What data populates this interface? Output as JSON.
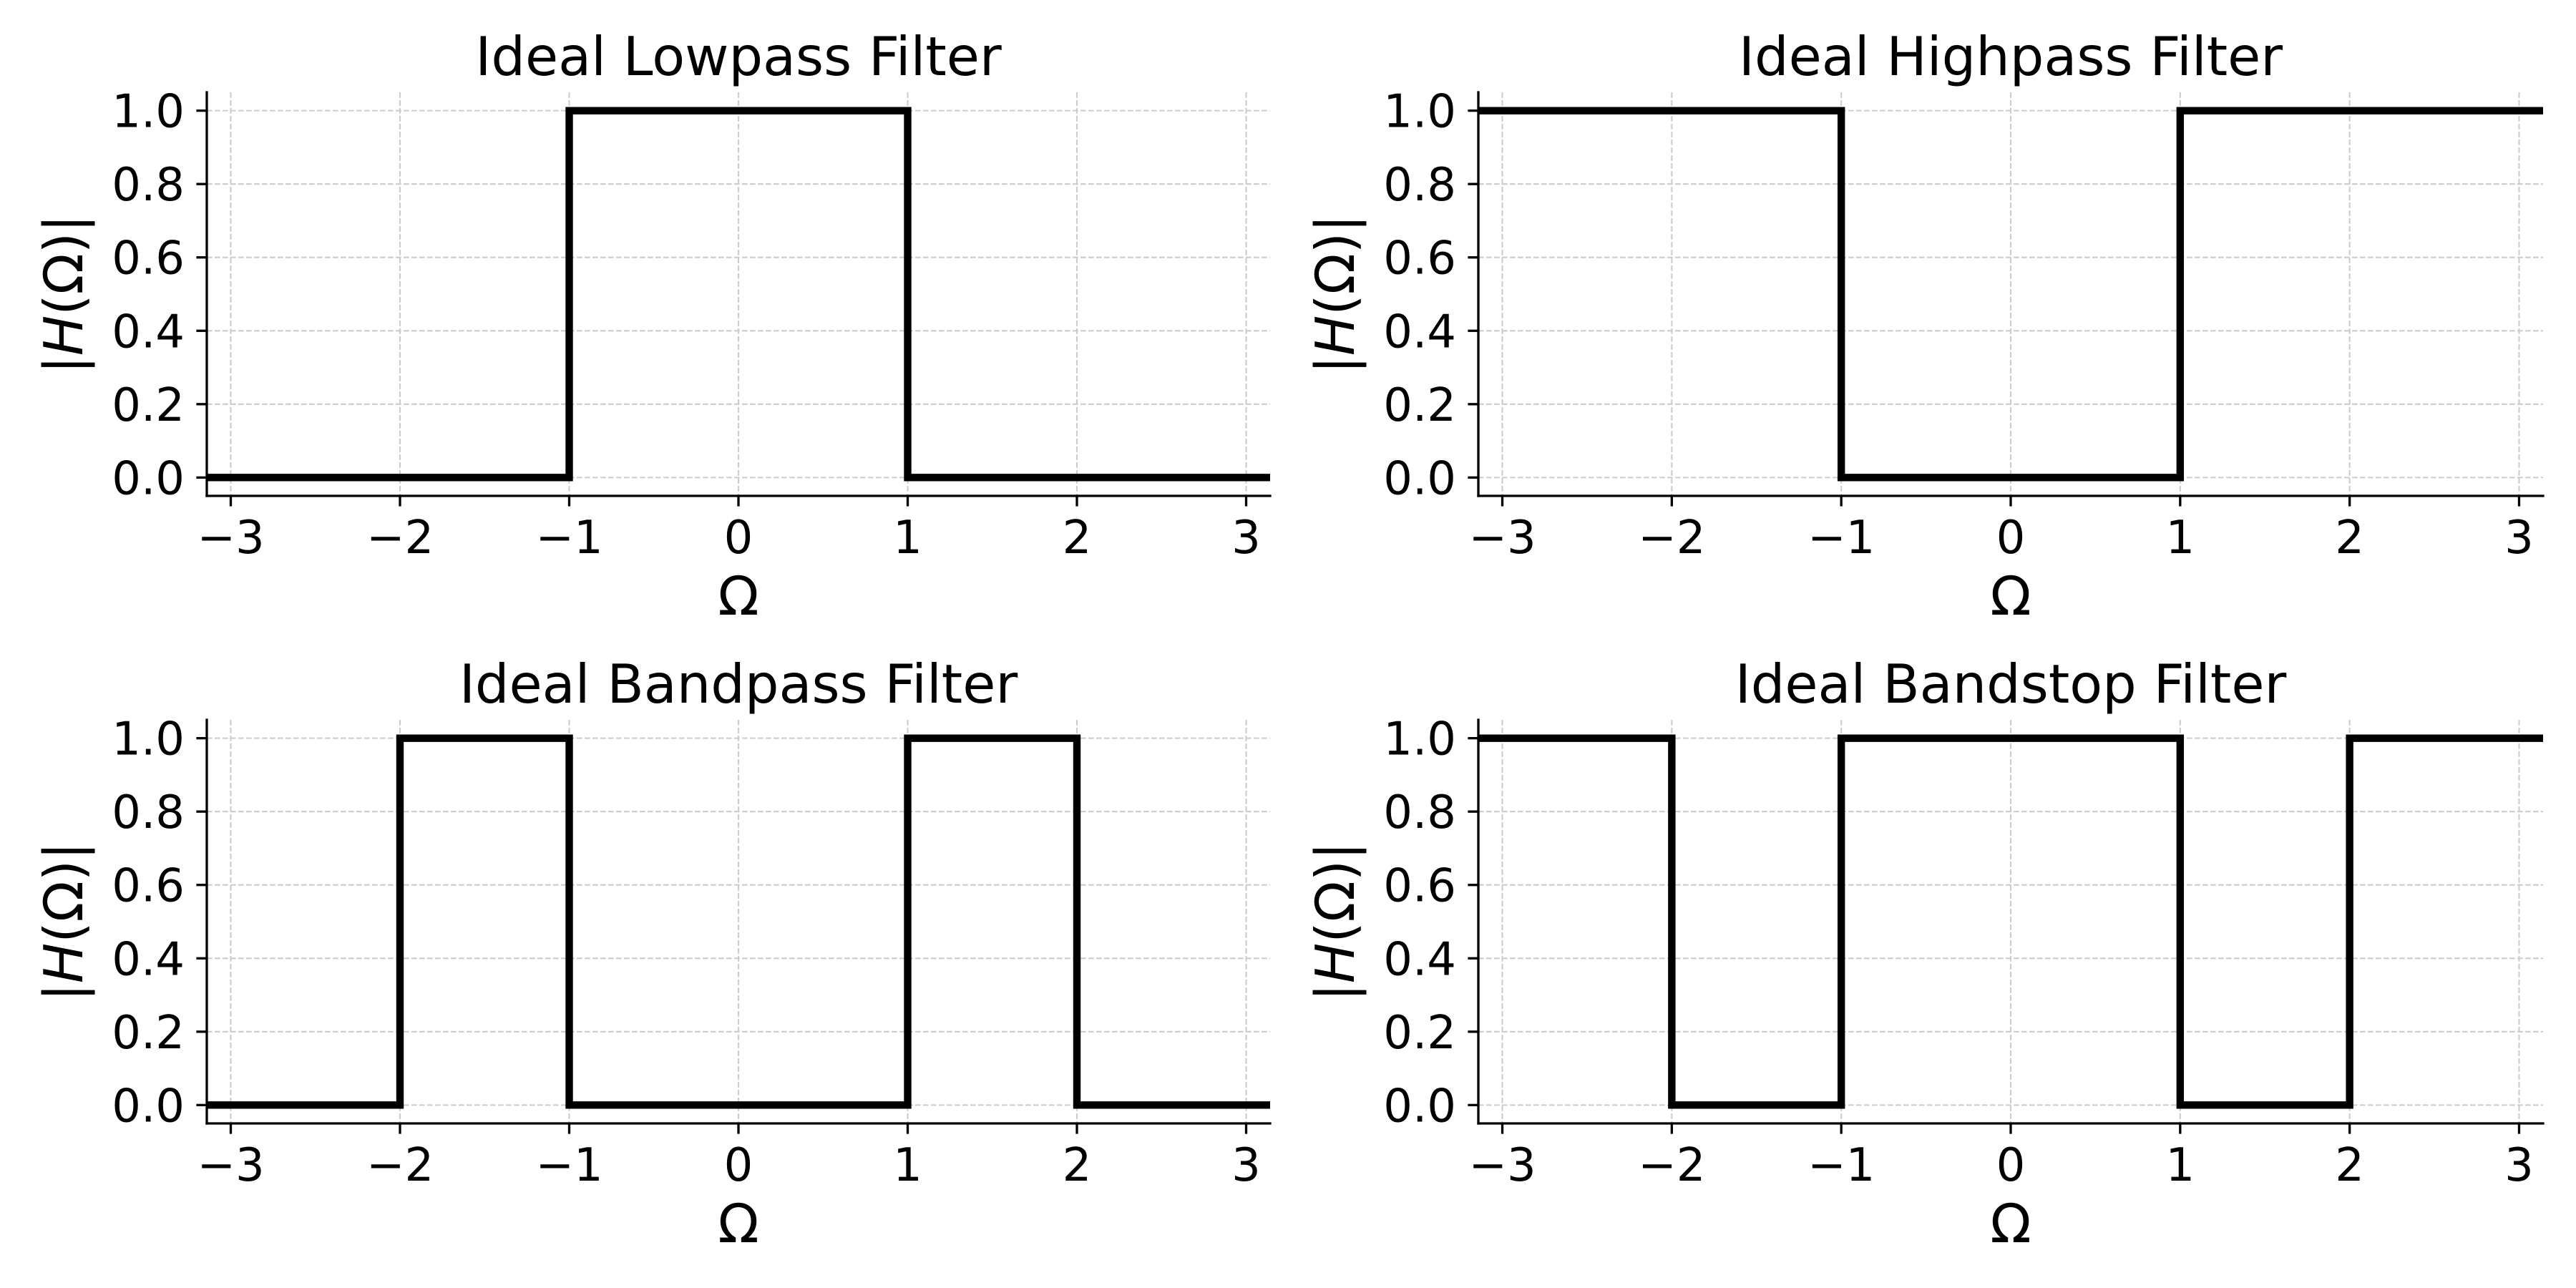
{
  "chart_data": [
    {
      "type": "line",
      "title": "Ideal Lowpass Filter",
      "xlabel": "Ω",
      "ylabel": "|H(Ω)|",
      "xlim": [
        -3.1416,
        3.1416
      ],
      "ylim": [
        -0.05,
        1.05
      ],
      "xticks": [
        -3,
        -2,
        -1,
        0,
        1,
        2,
        3
      ],
      "xtick_labels": [
        "−3",
        "−2",
        "−1",
        "0",
        "1",
        "2",
        "3"
      ],
      "yticks": [
        0,
        0.2,
        0.4,
        0.6,
        0.8,
        1.0
      ],
      "ytick_labels": [
        "0.0",
        "0.2",
        "0.4",
        "0.6",
        "0.8",
        "1.0"
      ],
      "grid": true,
      "series": [
        {
          "x": [
            -3.1416,
            -1,
            -1,
            1,
            1,
            3.1416
          ],
          "y": [
            0,
            0,
            1,
            1,
            0,
            0
          ],
          "color": "#000000"
        }
      ]
    },
    {
      "type": "line",
      "title": "Ideal Highpass Filter",
      "xlabel": "Ω",
      "ylabel": "|H(Ω)|",
      "xlim": [
        -3.1416,
        3.1416
      ],
      "ylim": [
        -0.05,
        1.05
      ],
      "xticks": [
        -3,
        -2,
        -1,
        0,
        1,
        2,
        3
      ],
      "xtick_labels": [
        "−3",
        "−2",
        "−1",
        "0",
        "1",
        "2",
        "3"
      ],
      "yticks": [
        0,
        0.2,
        0.4,
        0.6,
        0.8,
        1.0
      ],
      "ytick_labels": [
        "0.0",
        "0.2",
        "0.4",
        "0.6",
        "0.8",
        "1.0"
      ],
      "grid": true,
      "series": [
        {
          "x": [
            -3.1416,
            -1,
            -1,
            1,
            1,
            3.1416
          ],
          "y": [
            1,
            1,
            0,
            0,
            1,
            1
          ],
          "color": "#000000"
        }
      ]
    },
    {
      "type": "line",
      "title": "Ideal Bandpass Filter",
      "xlabel": "Ω",
      "ylabel": "|H(Ω)|",
      "xlim": [
        -3.1416,
        3.1416
      ],
      "ylim": [
        -0.05,
        1.05
      ],
      "xticks": [
        -3,
        -2,
        -1,
        0,
        1,
        2,
        3
      ],
      "xtick_labels": [
        "−3",
        "−2",
        "−1",
        "0",
        "1",
        "2",
        "3"
      ],
      "yticks": [
        0,
        0.2,
        0.4,
        0.6,
        0.8,
        1.0
      ],
      "ytick_labels": [
        "0.0",
        "0.2",
        "0.4",
        "0.6",
        "0.8",
        "1.0"
      ],
      "grid": true,
      "series": [
        {
          "x": [
            -3.1416,
            -2,
            -2,
            -1,
            -1,
            1,
            1,
            2,
            2,
            3.1416
          ],
          "y": [
            0,
            0,
            1,
            1,
            0,
            0,
            1,
            1,
            0,
            0
          ],
          "color": "#000000"
        }
      ]
    },
    {
      "type": "line",
      "title": "Ideal Bandstop Filter",
      "xlabel": "Ω",
      "ylabel": "|H(Ω)|",
      "xlim": [
        -3.1416,
        3.1416
      ],
      "ylim": [
        -0.05,
        1.05
      ],
      "xticks": [
        -3,
        -2,
        -1,
        0,
        1,
        2,
        3
      ],
      "xtick_labels": [
        "−3",
        "−2",
        "−1",
        "0",
        "1",
        "2",
        "3"
      ],
      "yticks": [
        0,
        0.2,
        0.4,
        0.6,
        0.8,
        1.0
      ],
      "ytick_labels": [
        "0.0",
        "0.2",
        "0.4",
        "0.6",
        "0.8",
        "1.0"
      ],
      "grid": true,
      "series": [
        {
          "x": [
            -3.1416,
            -2,
            -2,
            -1,
            -1,
            1,
            1,
            2,
            2,
            3.1416
          ],
          "y": [
            1,
            1,
            0,
            0,
            1,
            1,
            0,
            0,
            1,
            1
          ],
          "color": "#000000"
        }
      ]
    }
  ]
}
